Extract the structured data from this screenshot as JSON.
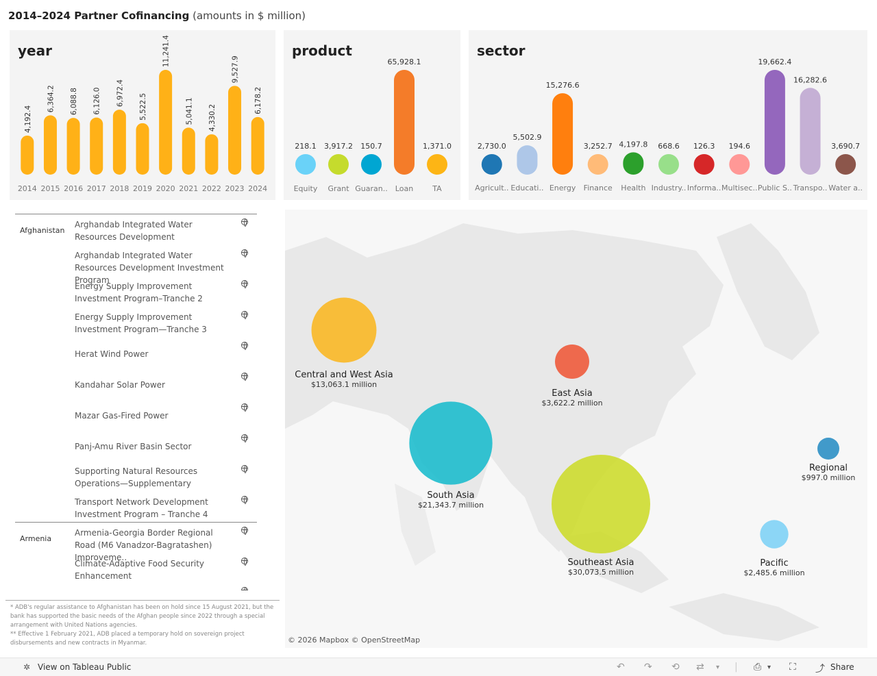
{
  "header": {
    "title_bold": "2014–2024 Partner Cofinancing",
    "title_sub": "(amounts in $ million)"
  },
  "chart_data": [
    {
      "type": "bar",
      "title": "year",
      "categories": [
        "2014",
        "2015",
        "2016",
        "2017",
        "2018",
        "2019",
        "2020",
        "2021",
        "2022",
        "2023",
        "2024"
      ],
      "values": [
        4192.4,
        6364.2,
        6088.8,
        6126.0,
        6972.4,
        5522.5,
        11241.4,
        5041.1,
        4330.2,
        9527.9,
        6178.2
      ],
      "labels": [
        "4,192.4",
        "6,364.2",
        "6,088.8",
        "6,126.0",
        "6,972.4",
        "5,522.5",
        "11,241.4",
        "5,041.1",
        "4,330.2",
        "9,527.9",
        "6,178.2"
      ],
      "color": "#FFB117"
    },
    {
      "type": "bar",
      "title": "product",
      "categories": [
        "Equity",
        "Grant",
        "Guaran..",
        "Loan",
        "TA"
      ],
      "values": [
        218.1,
        3917.2,
        150.7,
        65928.1,
        1371.0
      ],
      "labels": [
        "218.1",
        "3,917.2",
        "150.7",
        "65,928.1",
        "1,371.0"
      ],
      "colors": [
        "#6AD2F8",
        "#C5DB2D",
        "#00A6D2",
        "#F47C29",
        "#FDB515"
      ]
    },
    {
      "type": "bar",
      "title": "sector",
      "categories": [
        "Agricult..",
        "Educati..",
        "Energy",
        "Finance",
        "Health",
        "Industry..",
        "Informa..",
        "Multisec..",
        "Public S..",
        "Transpo..",
        "Water a.."
      ],
      "values": [
        2730.0,
        5502.9,
        15276.6,
        3252.7,
        4197.8,
        668.6,
        126.3,
        194.6,
        19662.4,
        16282.6,
        3690.7
      ],
      "labels": [
        "2,730.0",
        "5,502.9",
        "15,276.6",
        "3,252.7",
        "4,197.8",
        "668.6",
        "126.3",
        "194.6",
        "19,662.4",
        "16,282.6",
        "3,690.7"
      ],
      "colors": [
        "#1F77B4",
        "#AEC7E8",
        "#FF7F0E",
        "#FFBB78",
        "#2CA02C",
        "#98DF8A",
        "#D62728",
        "#FF9896",
        "#9467BD",
        "#C5B0D5",
        "#8C564B"
      ]
    }
  ],
  "projects": {
    "groups": [
      {
        "country": "Afghanistan",
        "items": [
          "Arghandab Integrated Water Resources Development",
          "Arghandab Integrated Water Resources Development Investment Program",
          "Energy Supply Improvement Investment Program–Tranche 2",
          "Energy Supply Improvement Investment Program—Tranche 3",
          "Herat Wind Power",
          "Kandahar Solar Power",
          "Mazar Gas-Fired Power",
          "Panj-Amu River Basin Sector",
          "Supporting Natural Resources Operations—Supplementary",
          "Transport Network Development Investment Program – Tranche 4"
        ]
      },
      {
        "country": "Armenia",
        "items": [
          "Armenia-Georgia Border Regional Road (M6 Vanadzor-Bagratashen) Improveme..",
          "Climate-Adaptive Food Security Enhancement"
        ]
      }
    ]
  },
  "footnotes": [
    "* ADB's regular assistance to Afghanistan has been on hold since 15 August 2021, but the bank has supported the basic needs of the Afghan people since 2022 through a special arrangement with United Nations agencies.",
    "** Effective 1 February 2021, ADB placed a temporary hold on sovereign project disbursements and new contracts in Myanmar."
  ],
  "map": {
    "attribution": "© 2026 Mapbox  © OpenStreetMap",
    "regions": [
      {
        "name": "Central and West Asia",
        "amount": "$13,063.1 million",
        "value": 13063.1,
        "color": "#F9B826"
      },
      {
        "name": "East Asia",
        "amount": "$3,622.2 million",
        "value": 3622.2,
        "color": "#EE5B3C"
      },
      {
        "name": "South Asia",
        "amount": "$21,343.7 million",
        "value": 21343.7,
        "color": "#1EBCCD"
      },
      {
        "name": "Southeast Asia",
        "amount": "$30,073.5 million",
        "value": 30073.5,
        "color": "#CDDB2F"
      },
      {
        "name": "Regional",
        "amount": "$997.0 million",
        "value": 997.0,
        "color": "#2C8FC4"
      },
      {
        "name": "Pacific",
        "amount": "$2,485.6 million",
        "value": 2485.6,
        "color": "#80D2F5"
      }
    ]
  },
  "toolbar": {
    "view_label": "View on Tableau Public",
    "share_label": "Share"
  }
}
